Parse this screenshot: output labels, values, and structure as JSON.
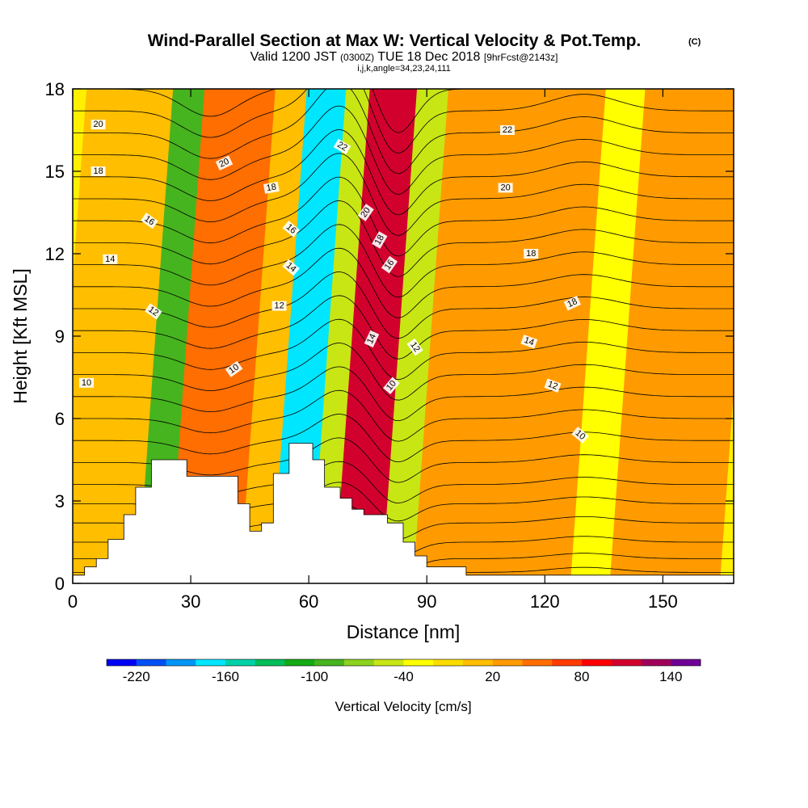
{
  "header": {
    "title": "Wind-Parallel Section at Max W: Vertical Velocity & Pot.Temp.",
    "copyright_mark": "(C)",
    "valid_prefix": "Valid 1200 JST",
    "valid_utc": "(0300Z)",
    "valid_date": "TUE 18 Dec 2018",
    "forecast_info": "[9hrFcst@2143z]",
    "params": "i,j,k,angle=34,23,24,111"
  },
  "chart_data": {
    "type": "contour",
    "xlabel": "Distance [nm]",
    "ylabel": "Height [Kft MSL]",
    "xlim": [
      0,
      168
    ],
    "ylim": [
      0,
      18
    ],
    "x_ticks": [
      0,
      30,
      60,
      90,
      120,
      150
    ],
    "y_ticks": [
      0,
      3,
      6,
      9,
      12,
      15,
      18
    ],
    "filled_field": {
      "name": "Vertical Velocity",
      "units": "cm/s",
      "bands": [
        {
          "x": [
            0,
            8
          ],
          "w": 15
        },
        {
          "x": [
            8,
            22
          ],
          "w": 10
        },
        {
          "x": [
            22,
            30
          ],
          "w": -90
        },
        {
          "x": [
            30,
            48
          ],
          "w": 55
        },
        {
          "x": [
            48,
            56
          ],
          "w": 15
        },
        {
          "x": [
            56,
            66
          ],
          "w": -170
        },
        {
          "x": [
            66,
            72
          ],
          "w": -55
        },
        {
          "x": [
            72,
            84
          ],
          "w": 110
        },
        {
          "x": [
            84,
            92
          ],
          "w": -55
        },
        {
          "x": [
            92,
            108
          ],
          "w": 25
        },
        {
          "x": [
            108,
            132
          ],
          "w": 35
        },
        {
          "x": [
            132,
            142
          ],
          "w": -30
        },
        {
          "x": [
            142,
            168
          ],
          "w": 20
        }
      ]
    },
    "terrain": [
      [
        0,
        0.3
      ],
      [
        3,
        0.3
      ],
      [
        3,
        0.6
      ],
      [
        6,
        0.6
      ],
      [
        6,
        0.9
      ],
      [
        9,
        0.9
      ],
      [
        9,
        1.6
      ],
      [
        13,
        1.6
      ],
      [
        13,
        2.5
      ],
      [
        16,
        2.5
      ],
      [
        16,
        3.5
      ],
      [
        20,
        3.5
      ],
      [
        20,
        4.5
      ],
      [
        29,
        4.5
      ],
      [
        29,
        3.9
      ],
      [
        42,
        3.9
      ],
      [
        42,
        2.9
      ],
      [
        45,
        2.9
      ],
      [
        45,
        1.9
      ],
      [
        48,
        1.9
      ],
      [
        48,
        2.2
      ],
      [
        51,
        2.2
      ],
      [
        51,
        4.0
      ],
      [
        55,
        4.0
      ],
      [
        55,
        5.1
      ],
      [
        61,
        5.1
      ],
      [
        61,
        4.5
      ],
      [
        64,
        4.5
      ],
      [
        64,
        3.5
      ],
      [
        68,
        3.5
      ],
      [
        68,
        3.1
      ],
      [
        71,
        3.1
      ],
      [
        71,
        2.7
      ],
      [
        74,
        2.7
      ],
      [
        74,
        2.5
      ],
      [
        80,
        2.5
      ],
      [
        80,
        2.2
      ],
      [
        84,
        2.2
      ],
      [
        84,
        1.5
      ],
      [
        87,
        1.5
      ],
      [
        87,
        1.0
      ],
      [
        90,
        1.0
      ],
      [
        90,
        0.6
      ],
      [
        100,
        0.6
      ],
      [
        100,
        0.3
      ],
      [
        168,
        0.3
      ]
    ],
    "contour_lines": {
      "name": "Pot.Temp.",
      "levels": [
        10,
        12,
        14,
        16,
        18,
        20,
        22
      ],
      "labels": [
        {
          "text": "20",
          "x": 6.5,
          "y": 16.7,
          "angle": 0
        },
        {
          "text": "18",
          "x": 6.5,
          "y": 15.0,
          "angle": 0
        },
        {
          "text": "14",
          "x": 9.5,
          "y": 11.8,
          "angle": 0
        },
        {
          "text": "10",
          "x": 3.5,
          "y": 7.3,
          "angle": 0
        },
        {
          "text": "16",
          "x": 19.5,
          "y": 13.2,
          "angle": 35
        },
        {
          "text": "12",
          "x": 20.5,
          "y": 9.9,
          "angle": 35
        },
        {
          "text": "20",
          "x": 38.5,
          "y": 15.3,
          "angle": -25
        },
        {
          "text": "18",
          "x": 50.5,
          "y": 14.4,
          "angle": -10
        },
        {
          "text": "10",
          "x": 41.0,
          "y": 7.8,
          "angle": -35
        },
        {
          "text": "16",
          "x": 55.5,
          "y": 12.9,
          "angle": 40
        },
        {
          "text": "14",
          "x": 55.5,
          "y": 11.5,
          "angle": 40
        },
        {
          "text": "12",
          "x": 52.5,
          "y": 10.1,
          "angle": 0
        },
        {
          "text": "22",
          "x": 68.5,
          "y": 15.9,
          "angle": 30
        },
        {
          "text": "20",
          "x": 74.5,
          "y": 13.5,
          "angle": -55
        },
        {
          "text": "18",
          "x": 78.0,
          "y": 12.5,
          "angle": -60
        },
        {
          "text": "16",
          "x": 80.5,
          "y": 11.6,
          "angle": -55
        },
        {
          "text": "14",
          "x": 76.0,
          "y": 8.9,
          "angle": -65
        },
        {
          "text": "12",
          "x": 87.0,
          "y": 8.6,
          "angle": 55
        },
        {
          "text": "10",
          "x": 81.0,
          "y": 7.2,
          "angle": -50
        },
        {
          "text": "22",
          "x": 110.5,
          "y": 16.5,
          "angle": 0
        },
        {
          "text": "20",
          "x": 110.0,
          "y": 14.4,
          "angle": 0
        },
        {
          "text": "18",
          "x": 116.5,
          "y": 12.0,
          "angle": 0
        },
        {
          "text": "18",
          "x": 127.0,
          "y": 10.2,
          "angle": -25
        },
        {
          "text": "14",
          "x": 116.0,
          "y": 8.8,
          "angle": 20
        },
        {
          "text": "12",
          "x": 122.0,
          "y": 7.2,
          "angle": 20
        },
        {
          "text": "10",
          "x": 129.0,
          "y": 5.4,
          "angle": 40
        }
      ]
    }
  },
  "colorbar": {
    "title": "Vertical Velocity [cm/s]",
    "tick_labels": [
      "-220",
      "-160",
      "-100",
      "-40",
      "20",
      "80",
      "140"
    ],
    "colors": [
      "#0000f5",
      "#0050f5",
      "#0096f5",
      "#00e6ff",
      "#00d2a8",
      "#00be5a",
      "#14aa14",
      "#46b41e",
      "#8cd21e",
      "#c8e614",
      "#ffff00",
      "#fadc00",
      "#ffbe00",
      "#ff9b00",
      "#ff6e00",
      "#ff3c00",
      "#ff0000",
      "#d2002d",
      "#a0005a",
      "#6e0096"
    ]
  }
}
